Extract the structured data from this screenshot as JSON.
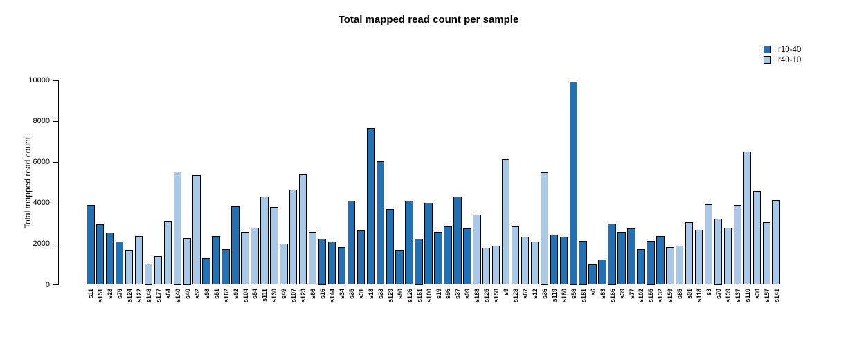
{
  "chart_data": {
    "type": "bar",
    "title": "Total mapped read count per sample",
    "xlabel": "",
    "ylabel": "Total mapped read count",
    "ylim": [
      0,
      10000
    ],
    "yticks": [
      0,
      2000,
      4000,
      6000,
      8000,
      10000
    ],
    "grid": false,
    "legend_position": "top-right",
    "series_colors": {
      "r10-40": "#2171b5",
      "r40-10": "#a8c8e8"
    },
    "legend": [
      {
        "name": "r10-40",
        "color": "#2171b5"
      },
      {
        "name": "r40-10",
        "color": "#a8c8e8"
      }
    ],
    "bars": [
      {
        "label": "s11",
        "value": 3900,
        "series": "r10-40"
      },
      {
        "label": "s151",
        "value": 2950,
        "series": "r10-40"
      },
      {
        "label": "s28",
        "value": 2550,
        "series": "r10-40"
      },
      {
        "label": "s79",
        "value": 2100,
        "series": "r10-40"
      },
      {
        "label": "s124",
        "value": 1700,
        "series": "r40-10"
      },
      {
        "label": "s122",
        "value": 2400,
        "series": "r40-10"
      },
      {
        "label": "s148",
        "value": 1050,
        "series": "r40-10"
      },
      {
        "label": "s177",
        "value": 1400,
        "series": "r40-10"
      },
      {
        "label": "s64",
        "value": 3100,
        "series": "r40-10"
      },
      {
        "label": "s140",
        "value": 5550,
        "series": "r40-10"
      },
      {
        "label": "s40",
        "value": 2300,
        "series": "r40-10"
      },
      {
        "label": "s52",
        "value": 5350,
        "series": "r40-10"
      },
      {
        "label": "s98",
        "value": 1300,
        "series": "r10-40"
      },
      {
        "label": "s51",
        "value": 2400,
        "series": "r10-40"
      },
      {
        "label": "s162",
        "value": 1750,
        "series": "r10-40"
      },
      {
        "label": "s92",
        "value": 3850,
        "series": "r10-40"
      },
      {
        "label": "s104",
        "value": 2600,
        "series": "r40-10"
      },
      {
        "label": "s54",
        "value": 2800,
        "series": "r40-10"
      },
      {
        "label": "s111",
        "value": 4300,
        "series": "r40-10"
      },
      {
        "label": "s130",
        "value": 3800,
        "series": "r40-10"
      },
      {
        "label": "s49",
        "value": 2000,
        "series": "r40-10"
      },
      {
        "label": "s107",
        "value": 4650,
        "series": "r40-10"
      },
      {
        "label": "s123",
        "value": 5400,
        "series": "r40-10"
      },
      {
        "label": "s66",
        "value": 2600,
        "series": "r40-10"
      },
      {
        "label": "s16",
        "value": 2250,
        "series": "r10-40"
      },
      {
        "label": "s144",
        "value": 2100,
        "series": "r10-40"
      },
      {
        "label": "s34",
        "value": 1850,
        "series": "r10-40"
      },
      {
        "label": "s35",
        "value": 4100,
        "series": "r10-40"
      },
      {
        "label": "s31",
        "value": 2650,
        "series": "r10-40"
      },
      {
        "label": "s18",
        "value": 7650,
        "series": "r10-40"
      },
      {
        "label": "s33",
        "value": 6050,
        "series": "r10-40"
      },
      {
        "label": "s129",
        "value": 3700,
        "series": "r10-40"
      },
      {
        "label": "s90",
        "value": 1700,
        "series": "r10-40"
      },
      {
        "label": "s126",
        "value": 4100,
        "series": "r10-40"
      },
      {
        "label": "s161",
        "value": 2250,
        "series": "r10-40"
      },
      {
        "label": "s100",
        "value": 4000,
        "series": "r10-40"
      },
      {
        "label": "s19",
        "value": 2600,
        "series": "r10-40"
      },
      {
        "label": "s96",
        "value": 2850,
        "series": "r10-40"
      },
      {
        "label": "s37",
        "value": 4300,
        "series": "r10-40"
      },
      {
        "label": "s99",
        "value": 2750,
        "series": "r10-40"
      },
      {
        "label": "s188",
        "value": 3450,
        "series": "r40-10"
      },
      {
        "label": "s125",
        "value": 1800,
        "series": "r40-10"
      },
      {
        "label": "s158",
        "value": 1900,
        "series": "r40-10"
      },
      {
        "label": "s9",
        "value": 6150,
        "series": "r40-10"
      },
      {
        "label": "s128",
        "value": 2850,
        "series": "r40-10"
      },
      {
        "label": "s67",
        "value": 2350,
        "series": "r40-10"
      },
      {
        "label": "s12",
        "value": 2100,
        "series": "r40-10"
      },
      {
        "label": "s36",
        "value": 5500,
        "series": "r40-10"
      },
      {
        "label": "s119",
        "value": 2450,
        "series": "r10-40"
      },
      {
        "label": "s180",
        "value": 2350,
        "series": "r10-40"
      },
      {
        "label": "s58",
        "value": 9950,
        "series": "r10-40"
      },
      {
        "label": "s181",
        "value": 2150,
        "series": "r10-40"
      },
      {
        "label": "s6",
        "value": 1000,
        "series": "r10-40"
      },
      {
        "label": "s83",
        "value": 1250,
        "series": "r10-40"
      },
      {
        "label": "s166",
        "value": 3000,
        "series": "r10-40"
      },
      {
        "label": "s39",
        "value": 2600,
        "series": "r10-40"
      },
      {
        "label": "s77",
        "value": 2750,
        "series": "r10-40"
      },
      {
        "label": "s102",
        "value": 1750,
        "series": "r10-40"
      },
      {
        "label": "s155",
        "value": 2150,
        "series": "r10-40"
      },
      {
        "label": "s132",
        "value": 2400,
        "series": "r10-40"
      },
      {
        "label": "s159",
        "value": 1850,
        "series": "r40-10"
      },
      {
        "label": "s85",
        "value": 1900,
        "series": "r40-10"
      },
      {
        "label": "s91",
        "value": 3050,
        "series": "r40-10"
      },
      {
        "label": "s118",
        "value": 2700,
        "series": "r40-10"
      },
      {
        "label": "s3",
        "value": 3950,
        "series": "r40-10"
      },
      {
        "label": "s70",
        "value": 3250,
        "series": "r40-10"
      },
      {
        "label": "s139",
        "value": 2800,
        "series": "r40-10"
      },
      {
        "label": "s137",
        "value": 3900,
        "series": "r40-10"
      },
      {
        "label": "s110",
        "value": 6500,
        "series": "r40-10"
      },
      {
        "label": "s30",
        "value": 4600,
        "series": "r40-10"
      },
      {
        "label": "s157",
        "value": 3050,
        "series": "r40-10"
      },
      {
        "label": "s141",
        "value": 4150,
        "series": "r40-10"
      }
    ]
  }
}
